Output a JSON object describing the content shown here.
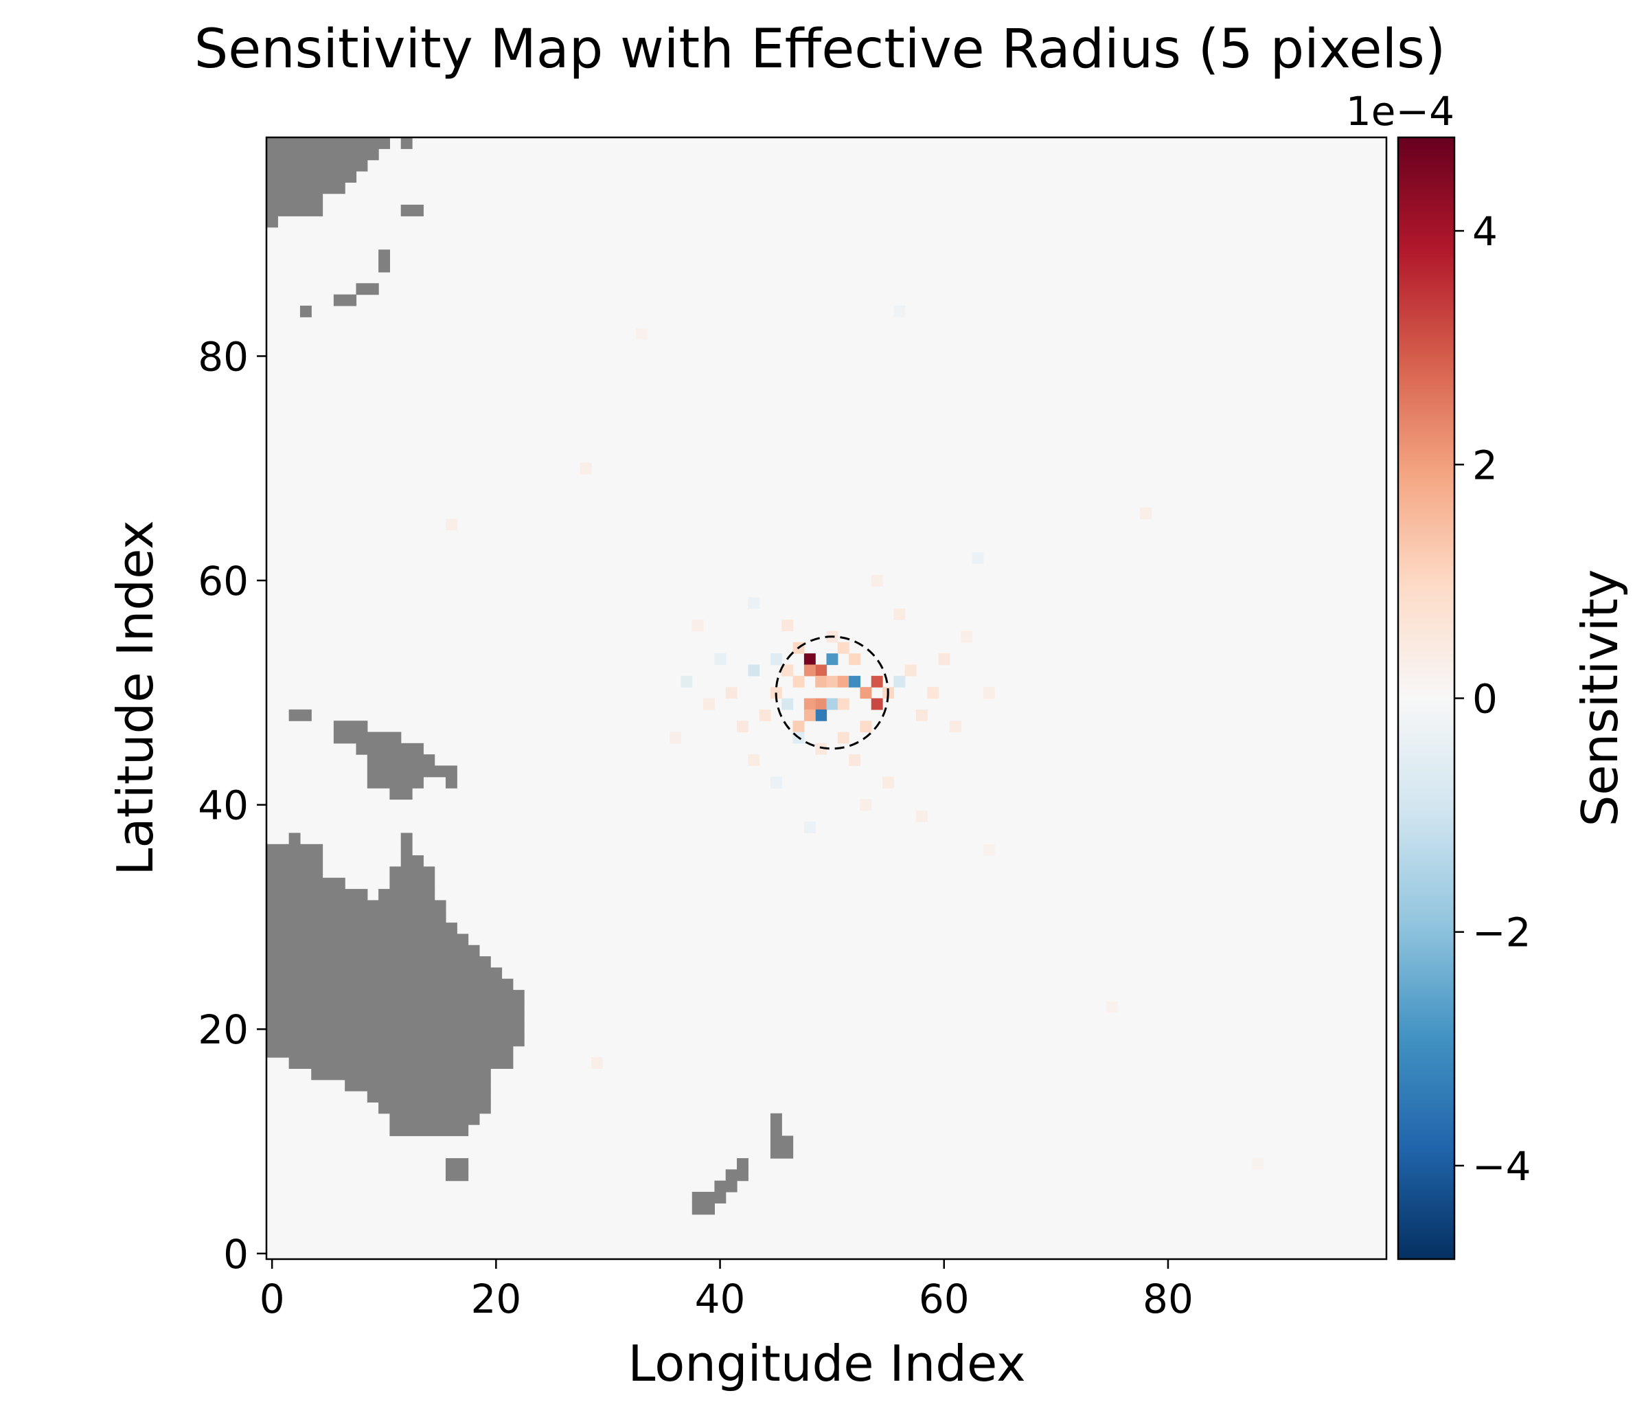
{
  "chart_data": {
    "type": "heatmap",
    "title": "Sensitivity Map with Effective Radius (5 pixels)",
    "xlabel": "Longitude Index",
    "ylabel": "Latitude Index",
    "xlim": [
      -0.5,
      99.5
    ],
    "ylim": [
      -0.5,
      99.5
    ],
    "x_ticks": [
      0,
      20,
      40,
      60,
      80
    ],
    "y_ticks": [
      0,
      20,
      40,
      60,
      80
    ],
    "grid": false,
    "colormap": "RdBu_r",
    "land_color": "#808080",
    "colorbar": {
      "label": "Sensitivity",
      "offset_text": "1e−4",
      "range": [
        -4.8,
        4.8
      ],
      "ticks": [
        -4,
        -2,
        0,
        2,
        4
      ],
      "tick_labels": [
        "−4",
        "−2",
        "0",
        "2",
        "4"
      ],
      "colors": [
        "#053061",
        "#2166ac",
        "#4393c3",
        "#92c5de",
        "#d1e5f0",
        "#f7f7f7",
        "#fddbc7",
        "#f4a582",
        "#d6604d",
        "#b2182b",
        "#67001f"
      ]
    },
    "effective_radius": {
      "center": [
        50,
        50
      ],
      "radius": 5,
      "style": "dashed",
      "color": "#000000"
    },
    "land_runs": [
      [
        99,
        0,
        10
      ],
      [
        98,
        0,
        9
      ],
      [
        97,
        0,
        8
      ],
      [
        96,
        0,
        7
      ],
      [
        95,
        0,
        6
      ],
      [
        94,
        0,
        4
      ],
      [
        93,
        0,
        4
      ],
      [
        92,
        0,
        0
      ],
      [
        99,
        12,
        12
      ],
      [
        93,
        12,
        13
      ],
      [
        89,
        10,
        10
      ],
      [
        88,
        10,
        10
      ],
      [
        86,
        8,
        9
      ],
      [
        85,
        6,
        7
      ],
      [
        84,
        3,
        3
      ],
      [
        48,
        2,
        3
      ],
      [
        47,
        6,
        8
      ],
      [
        46,
        6,
        11
      ],
      [
        45,
        8,
        13
      ],
      [
        44,
        9,
        14
      ],
      [
        43,
        9,
        16
      ],
      [
        42,
        9,
        13
      ],
      [
        42,
        16,
        16
      ],
      [
        41,
        11,
        12
      ],
      [
        37,
        2,
        2
      ],
      [
        37,
        12,
        12
      ],
      [
        36,
        0,
        4
      ],
      [
        36,
        12,
        12
      ],
      [
        35,
        0,
        4
      ],
      [
        35,
        12,
        13
      ],
      [
        34,
        0,
        4
      ],
      [
        34,
        11,
        14
      ],
      [
        33,
        0,
        6
      ],
      [
        33,
        11,
        14
      ],
      [
        32,
        0,
        8
      ],
      [
        32,
        10,
        14
      ],
      [
        31,
        0,
        10
      ],
      [
        31,
        10,
        15
      ],
      [
        30,
        0,
        15
      ],
      [
        29,
        0,
        16
      ],
      [
        28,
        0,
        17
      ],
      [
        27,
        0,
        18
      ],
      [
        26,
        0,
        19
      ],
      [
        25,
        0,
        20
      ],
      [
        24,
        0,
        21
      ],
      [
        23,
        0,
        22
      ],
      [
        22,
        0,
        22
      ],
      [
        21,
        0,
        22
      ],
      [
        20,
        0,
        22
      ],
      [
        19,
        0,
        22
      ],
      [
        18,
        0,
        21
      ],
      [
        17,
        2,
        21
      ],
      [
        16,
        4,
        19
      ],
      [
        15,
        7,
        19
      ],
      [
        14,
        9,
        19
      ],
      [
        13,
        10,
        19
      ],
      [
        12,
        11,
        18
      ],
      [
        11,
        11,
        17
      ],
      [
        12,
        45,
        45
      ],
      [
        11,
        45,
        45
      ],
      [
        10,
        45,
        46
      ],
      [
        9,
        45,
        46
      ],
      [
        8,
        16,
        17
      ],
      [
        8,
        42,
        42
      ],
      [
        7,
        16,
        17
      ],
      [
        7,
        41,
        42
      ],
      [
        6,
        40,
        41
      ],
      [
        5,
        38,
        40
      ],
      [
        4,
        38,
        39
      ]
    ],
    "sensitivity_points": [
      {
        "x": 48,
        "y": 53,
        "value": 4.6
      },
      {
        "x": 49,
        "y": 52,
        "value": 2.8
      },
      {
        "x": 48,
        "y": 52,
        "value": 2.2
      },
      {
        "x": 50,
        "y": 53,
        "value": -2.8
      },
      {
        "x": 49,
        "y": 51,
        "value": 1.5
      },
      {
        "x": 50,
        "y": 51,
        "value": 1.3
      },
      {
        "x": 51,
        "y": 51,
        "value": 1.8
      },
      {
        "x": 52,
        "y": 51,
        "value": -3.0
      },
      {
        "x": 47,
        "y": 51,
        "value": 1.0
      },
      {
        "x": 53,
        "y": 50,
        "value": 2.0
      },
      {
        "x": 54,
        "y": 51,
        "value": 3.0
      },
      {
        "x": 54,
        "y": 49,
        "value": 3.2
      },
      {
        "x": 49,
        "y": 49,
        "value": 2.2
      },
      {
        "x": 48,
        "y": 49,
        "value": 2.0
      },
      {
        "x": 50,
        "y": 49,
        "value": -1.5
      },
      {
        "x": 49,
        "y": 48,
        "value": -3.4
      },
      {
        "x": 48,
        "y": 48,
        "value": 1.6
      },
      {
        "x": 47,
        "y": 47,
        "value": 1.2
      },
      {
        "x": 51,
        "y": 49,
        "value": 0.9
      },
      {
        "x": 46,
        "y": 52,
        "value": 0.8
      },
      {
        "x": 47,
        "y": 54,
        "value": 1.0
      },
      {
        "x": 51,
        "y": 54,
        "value": 0.9
      },
      {
        "x": 52,
        "y": 53,
        "value": 1.0
      },
      {
        "x": 45,
        "y": 50,
        "value": 0.8
      },
      {
        "x": 43,
        "y": 52,
        "value": -0.9
      },
      {
        "x": 55,
        "y": 50,
        "value": 1.0
      },
      {
        "x": 56,
        "y": 51,
        "value": -0.8
      },
      {
        "x": 46,
        "y": 49,
        "value": -0.8
      },
      {
        "x": 53,
        "y": 47,
        "value": 0.9
      },
      {
        "x": 51,
        "y": 46,
        "value": 0.7
      },
      {
        "x": 47,
        "y": 46,
        "value": -0.6
      },
      {
        "x": 44,
        "y": 48,
        "value": 0.6
      },
      {
        "x": 45,
        "y": 53,
        "value": -0.6
      },
      {
        "x": 57,
        "y": 52,
        "value": 0.6
      },
      {
        "x": 42,
        "y": 47,
        "value": 0.5
      },
      {
        "x": 58,
        "y": 48,
        "value": 0.5
      },
      {
        "x": 41,
        "y": 50,
        "value": 0.5
      },
      {
        "x": 59,
        "y": 50,
        "value": 0.6
      },
      {
        "x": 50,
        "y": 55,
        "value": 0.5
      },
      {
        "x": 49,
        "y": 45,
        "value": 0.5
      },
      {
        "x": 46,
        "y": 56,
        "value": 0.5
      },
      {
        "x": 52,
        "y": 44,
        "value": 0.5
      },
      {
        "x": 40,
        "y": 53,
        "value": -0.4
      },
      {
        "x": 37,
        "y": 51,
        "value": -0.5
      },
      {
        "x": 39,
        "y": 49,
        "value": 0.4
      },
      {
        "x": 60,
        "y": 53,
        "value": 0.5
      },
      {
        "x": 61,
        "y": 47,
        "value": 0.4
      },
      {
        "x": 43,
        "y": 44,
        "value": 0.4
      },
      {
        "x": 45,
        "y": 42,
        "value": -0.3
      },
      {
        "x": 55,
        "y": 42,
        "value": 0.4
      },
      {
        "x": 53,
        "y": 40,
        "value": 0.3
      },
      {
        "x": 56,
        "y": 57,
        "value": 0.4
      },
      {
        "x": 43,
        "y": 58,
        "value": -0.3
      },
      {
        "x": 54,
        "y": 60,
        "value": 0.3
      },
      {
        "x": 62,
        "y": 55,
        "value": 0.3
      },
      {
        "x": 63,
        "y": 62,
        "value": -0.3
      },
      {
        "x": 38,
        "y": 56,
        "value": 0.3
      },
      {
        "x": 36,
        "y": 46,
        "value": 0.3
      },
      {
        "x": 64,
        "y": 50,
        "value": 0.3
      },
      {
        "x": 48,
        "y": 38,
        "value": -0.3
      },
      {
        "x": 58,
        "y": 39,
        "value": 0.3
      },
      {
        "x": 28,
        "y": 70,
        "value": 0.3
      },
      {
        "x": 16,
        "y": 65,
        "value": 0.3
      },
      {
        "x": 29,
        "y": 17,
        "value": 0.3
      },
      {
        "x": 78,
        "y": 66,
        "value": 0.3
      },
      {
        "x": 33,
        "y": 82,
        "value": 0.2
      },
      {
        "x": 56,
        "y": 84,
        "value": -0.2
      },
      {
        "x": 75,
        "y": 22,
        "value": 0.2
      },
      {
        "x": 88,
        "y": 8,
        "value": 0.2
      },
      {
        "x": 64,
        "y": 36,
        "value": 0.2
      }
    ]
  }
}
